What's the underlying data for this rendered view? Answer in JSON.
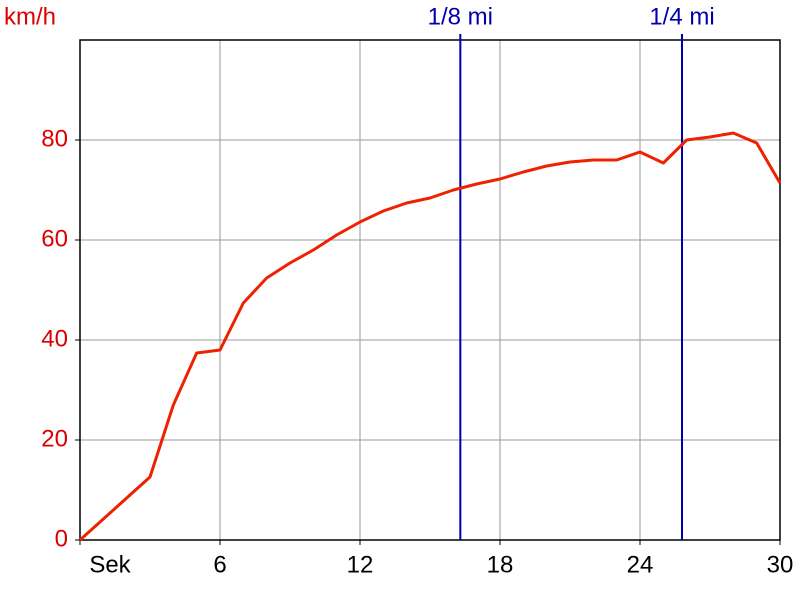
{
  "chart_data": {
    "type": "line",
    "y_label": "km/h",
    "x": [
      0,
      3,
      4,
      5,
      6,
      7,
      8,
      9,
      10,
      11,
      12,
      13,
      14,
      15,
      16,
      17,
      18,
      19,
      20,
      21,
      22,
      23,
      24,
      25,
      26,
      27,
      28,
      29,
      30
    ],
    "series": [
      {
        "name": "km/h",
        "color": "#ee2200",
        "values": [
          0,
          12.6,
          27,
          37.4,
          38,
          47.4,
          52.4,
          55.4,
          58,
          61,
          63.6,
          65.8,
          67.4,
          68.4,
          70,
          71.2,
          72.2,
          73.6,
          74.8,
          75.6,
          76,
          76,
          77.6,
          75.4,
          80,
          80.6,
          81.4,
          79.4,
          71.4
        ]
      }
    ],
    "xlim": [
      0,
      30
    ],
    "xticks": [
      {
        "value": 0,
        "label": "Sek"
      },
      6,
      12,
      18,
      24,
      30
    ],
    "ylim": [
      0,
      100
    ],
    "yticks": [
      0,
      20,
      40,
      60,
      80
    ],
    "grid": true,
    "markers": [
      {
        "label": "1/8 mi",
        "x": 16.3,
        "color": "#0000aa"
      },
      {
        "label": "1/4 mi",
        "x": 25.8,
        "color": "#0000aa"
      }
    ]
  }
}
